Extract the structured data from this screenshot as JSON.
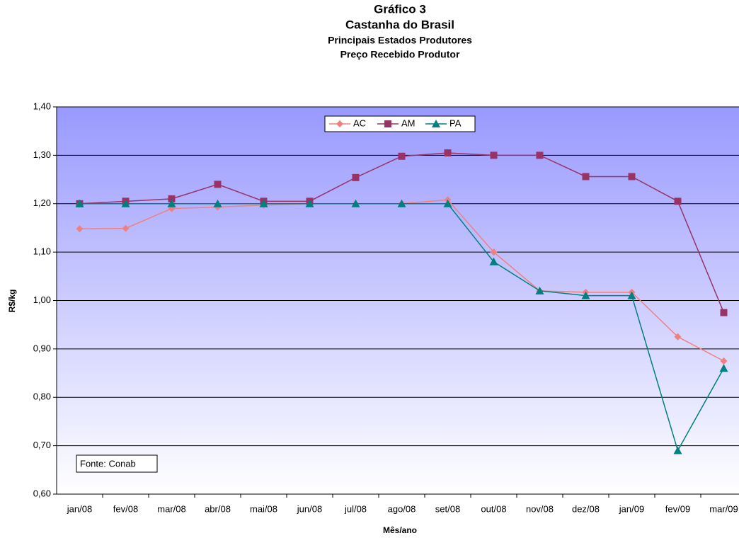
{
  "chart_data": {
    "type": "line",
    "title": [
      "Gráfico 3",
      "Castanha do Brasil"
    ],
    "subtitle": [
      "Principais Estados Produtores",
      "Preço Recebido Produtor"
    ],
    "x_label": "Mês/ano",
    "y_label": "R$/kg",
    "annotation": "Fonte: Conab",
    "categories": [
      "jan/08",
      "fev/08",
      "mar/08",
      "abr/08",
      "mai/08",
      "jun/08",
      "jul/08",
      "ago/08",
      "set/08",
      "out/08",
      "nov/08",
      "dez/08",
      "jan/09",
      "fev/09",
      "mar/09"
    ],
    "series": [
      {
        "name": "AC",
        "color": "#f08080",
        "marker": "diamond",
        "values": [
          1.148,
          1.149,
          1.19,
          1.193,
          1.197,
          1.2,
          1.2,
          1.2,
          1.208,
          1.1,
          1.02,
          1.017,
          1.017,
          0.925,
          0.875
        ]
      },
      {
        "name": "AM",
        "color": "#993366",
        "marker": "square",
        "values": [
          1.2,
          1.205,
          1.21,
          1.24,
          1.205,
          1.205,
          1.254,
          1.298,
          1.305,
          1.3,
          1.3,
          1.256,
          1.256,
          1.205,
          0.975
        ]
      },
      {
        "name": "PA",
        "color": "#008080",
        "marker": "triangle",
        "values": [
          1.2,
          1.2,
          1.2,
          1.2,
          1.2,
          1.2,
          1.2,
          1.2,
          1.2,
          1.08,
          1.02,
          1.01,
          1.01,
          0.69,
          0.86
        ]
      }
    ],
    "ylim": [
      0.6,
      1.4
    ],
    "yticks": [
      {
        "value": 0.6,
        "label": "0,60"
      },
      {
        "value": 0.7,
        "label": "0,70"
      },
      {
        "value": 0.8,
        "label": "0,80"
      },
      {
        "value": 0.9,
        "label": "0,90"
      },
      {
        "value": 1.0,
        "label": "1,00"
      },
      {
        "value": 1.1,
        "label": "1,10"
      },
      {
        "value": 1.2,
        "label": "1,20"
      },
      {
        "value": 1.3,
        "label": "1,30"
      },
      {
        "value": 1.4,
        "label": "1,40"
      }
    ],
    "grid": true,
    "legend": "top"
  }
}
